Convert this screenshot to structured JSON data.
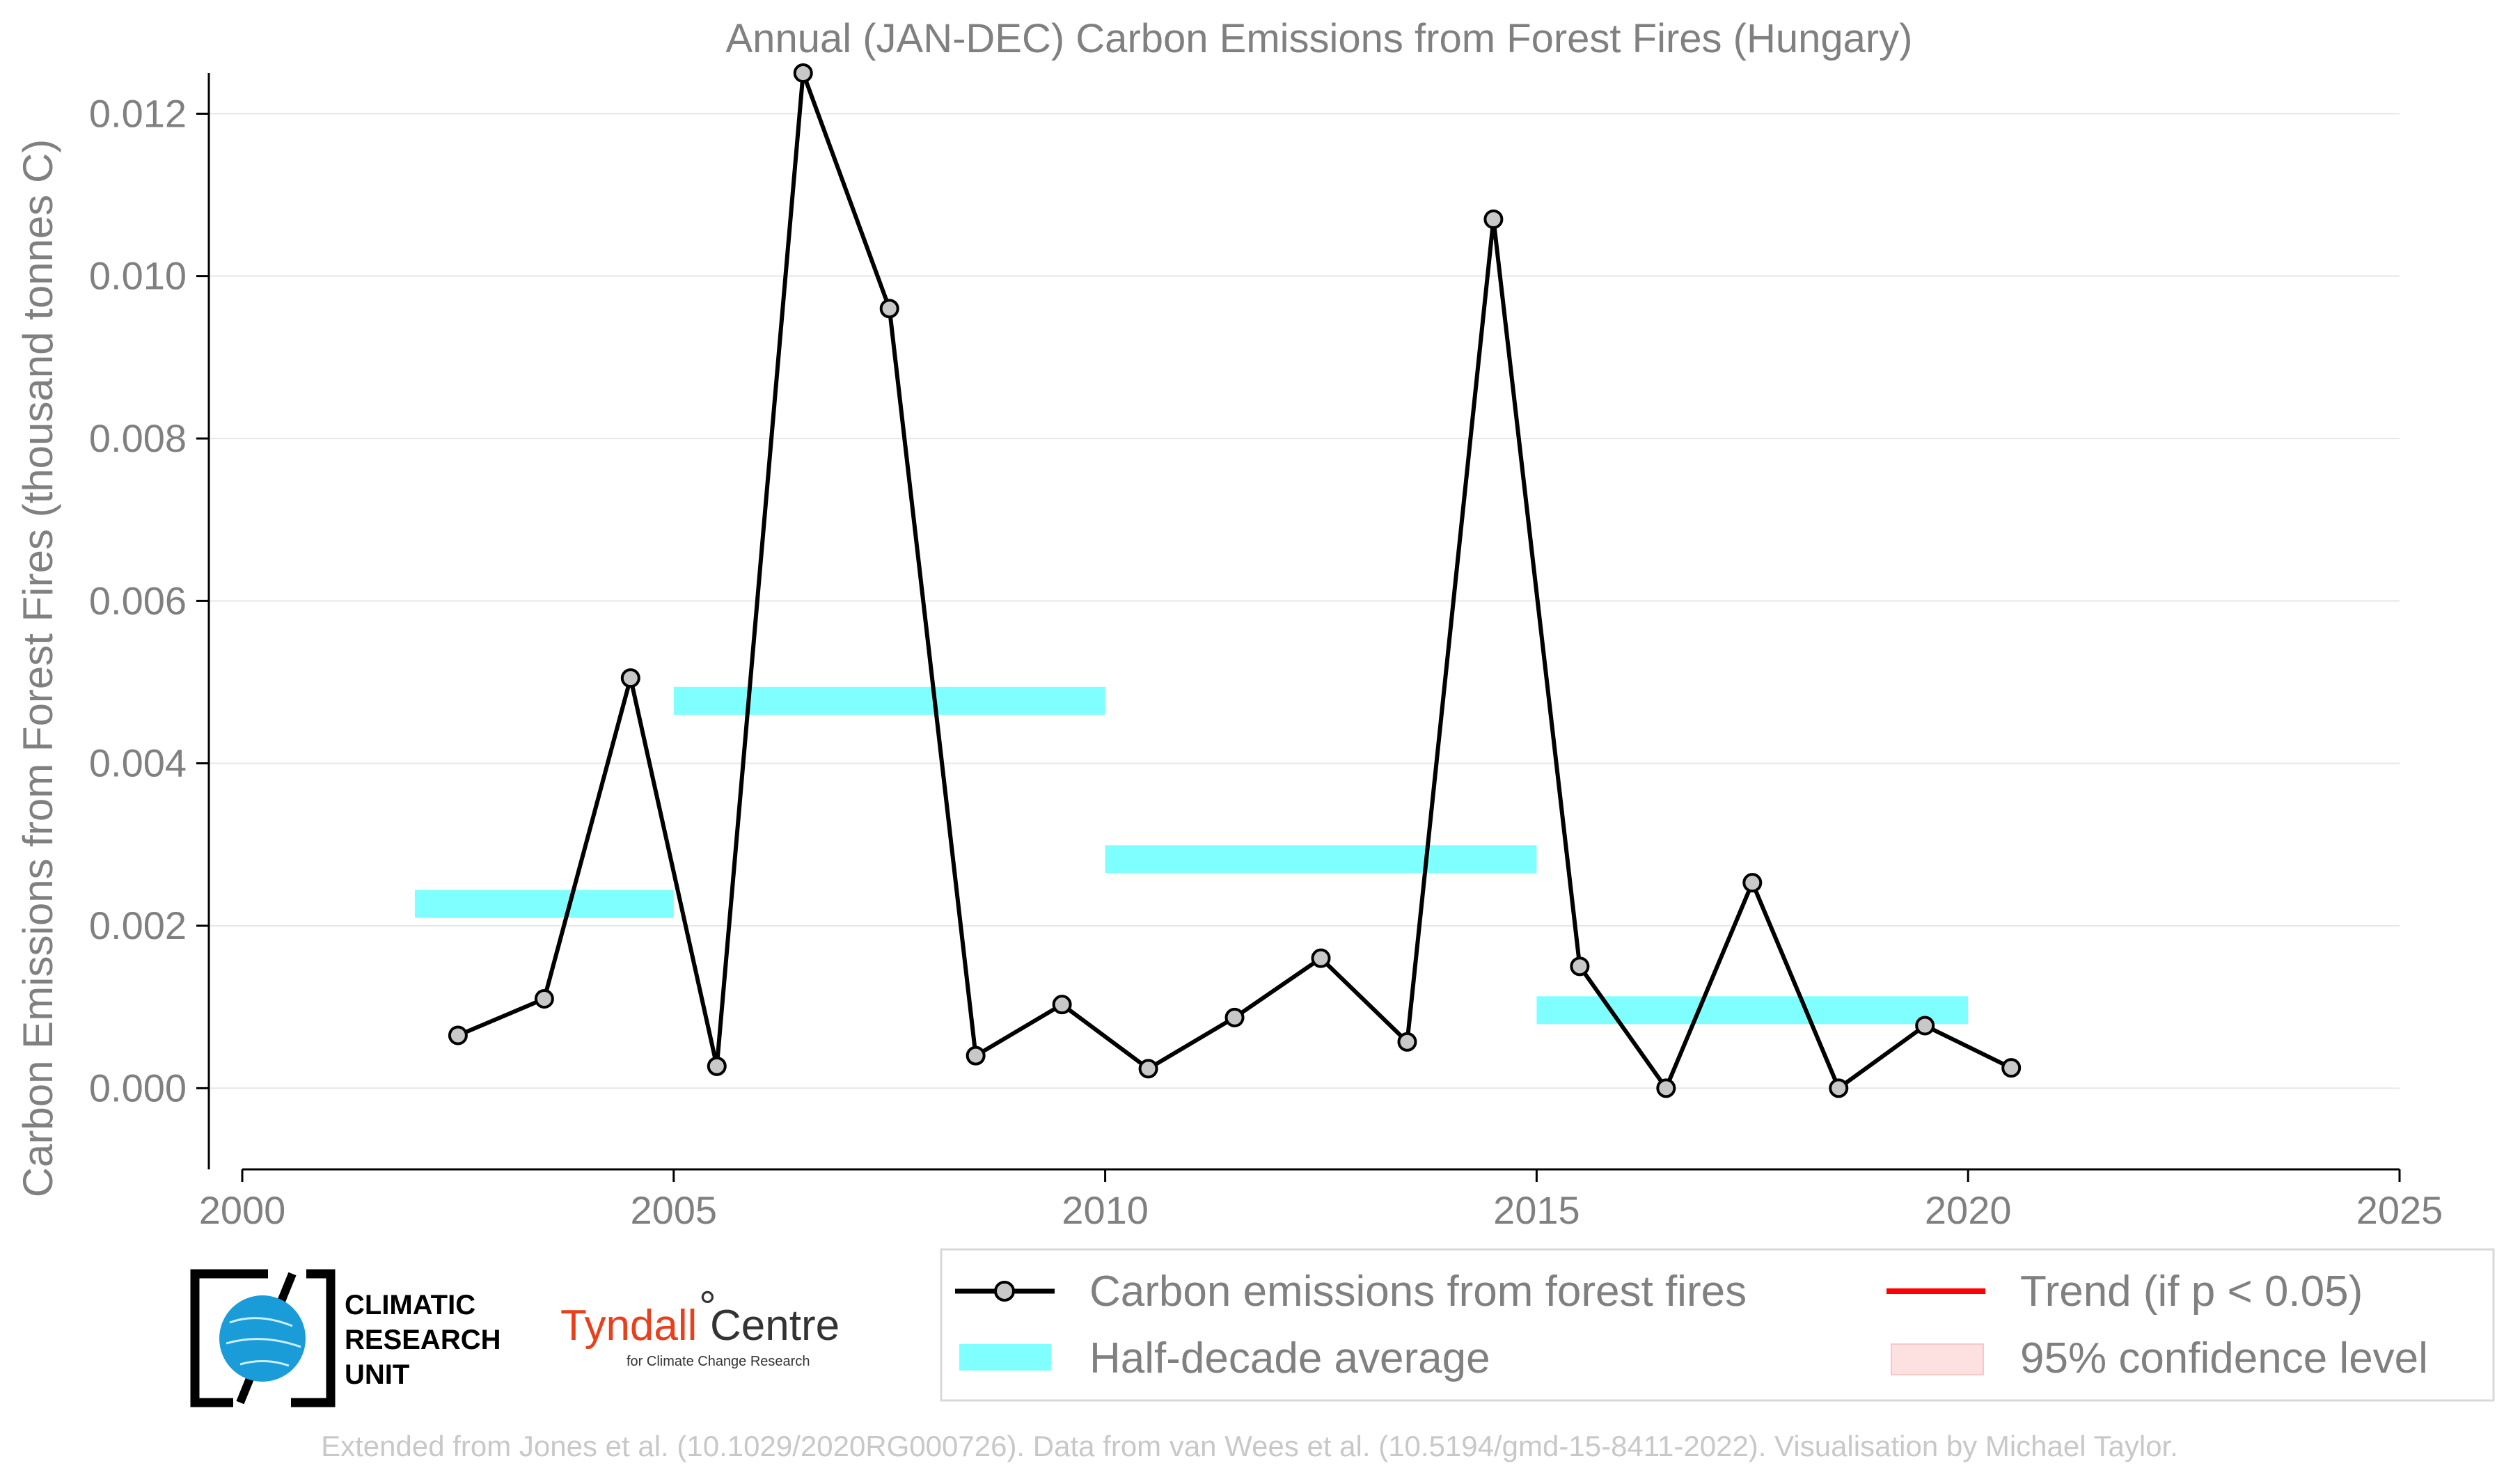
{
  "chart_data": {
    "type": "line",
    "title": "Annual (JAN-DEC) Carbon Emissions from Forest Fires (Hungary)",
    "ylabel": "Carbon Emissions from Forest Fires (thousand tonnes C)",
    "xlabel": "",
    "xlim": [
      2000,
      2025
    ],
    "ylim": [
      -0.001,
      0.0125
    ],
    "x_ticks": [
      2000,
      2005,
      2010,
      2015,
      2020,
      2025
    ],
    "y_ticks": [
      0.0,
      0.002,
      0.004,
      0.006,
      0.008,
      0.01,
      0.012
    ],
    "y_tick_labels": [
      "0.000",
      "0.002",
      "0.004",
      "0.006",
      "0.008",
      "0.010",
      "0.012"
    ],
    "grid": "horizontal",
    "series": [
      {
        "name": "Carbon emissions from forest fires",
        "color": "#000000",
        "marker_fill": "#c8c8c8",
        "x": [
          2002.5,
          2003.5,
          2004.5,
          2005.5,
          2006.5,
          2007.5,
          2008.5,
          2009.5,
          2010.5,
          2011.5,
          2012.5,
          2013.5,
          2014.5,
          2015.5,
          2016.5,
          2017.5,
          2018.5,
          2019.5,
          2020.5
        ],
        "values": [
          0.00065,
          0.0011,
          0.00505,
          0.00027,
          0.0125,
          0.0096,
          0.0004,
          0.00103,
          0.00024,
          0.00087,
          0.0016,
          0.00057,
          0.0107,
          0.0015,
          0.0,
          0.00253,
          0.0,
          0.00077,
          0.00025
        ]
      }
    ],
    "half_decade_average": {
      "name": "Half-decade average",
      "color": "#7fffff",
      "segments": [
        {
          "x_start": 2002,
          "x_end": 2005,
          "value": 0.00227
        },
        {
          "x_start": 2005,
          "x_end": 2010,
          "value": 0.00477
        },
        {
          "x_start": 2010,
          "x_end": 2015,
          "value": 0.00282
        },
        {
          "x_start": 2015,
          "x_end": 2020,
          "value": 0.00096
        }
      ]
    },
    "legend": {
      "placement": "bottom-right",
      "items": [
        {
          "label": "Carbon emissions from forest fires",
          "type": "line-marker",
          "color": "#000000"
        },
        {
          "label": "Trend (if p < 0.05)",
          "type": "line",
          "color": "#ff0000"
        },
        {
          "label": "Half-decade average",
          "type": "band",
          "color": "#7fffff"
        },
        {
          "label": "95% confidence level",
          "type": "patch",
          "color": "#fde0e0"
        }
      ]
    }
  },
  "logos": {
    "cru": [
      "CLIMATIC",
      "RESEARCH",
      "UNIT"
    ],
    "tyndall_main": "Tyndall",
    "tyndall_centre": "Centre",
    "tyndall_sub": "for Climate Change Research"
  },
  "footer": "Extended from Jones et al. (10.1029/2020RG000726). Data from van Wees et al. (10.5194/gmd-15-8411-2022). Visualisation by Michael Taylor."
}
